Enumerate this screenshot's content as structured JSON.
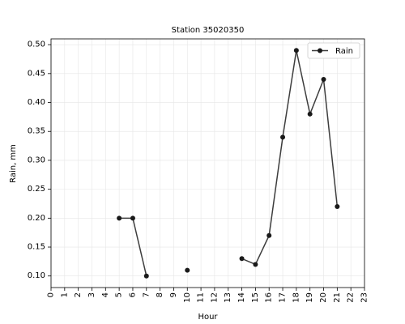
{
  "chart_data": {
    "type": "line",
    "title": "Station 35020350",
    "xlabel": "Hour",
    "ylabel": "Rain, mm",
    "x_ticks": [
      "0",
      "1",
      "2",
      "3",
      "4",
      "5",
      "6",
      "7",
      "8",
      "9",
      "10",
      "11",
      "12",
      "13",
      "14",
      "15",
      "16",
      "17",
      "18",
      "19",
      "20",
      "21",
      "22",
      "23"
    ],
    "y_ticks": [
      "0.10",
      "0.15",
      "0.20",
      "0.25",
      "0.30",
      "0.35",
      "0.40",
      "0.45",
      "0.50"
    ],
    "xlim": [
      0,
      23
    ],
    "ylim": [
      0.08,
      0.51
    ],
    "grid": true,
    "legend_position": "top-right",
    "series": [
      {
        "name": "Rain",
        "color": "#1a1a1a",
        "line_color": "#3d3d3d",
        "x": [
          0,
          1,
          2,
          3,
          4,
          5,
          6,
          7,
          8,
          9,
          10,
          11,
          12,
          13,
          14,
          15,
          16,
          17,
          18,
          19,
          20,
          21,
          22,
          23
        ],
        "values": [
          null,
          null,
          null,
          null,
          null,
          0.2,
          0.2,
          0.1,
          null,
          null,
          0.11,
          null,
          null,
          null,
          0.13,
          0.12,
          0.17,
          0.34,
          0.49,
          0.38,
          0.44,
          0.22,
          null,
          null
        ]
      }
    ]
  }
}
